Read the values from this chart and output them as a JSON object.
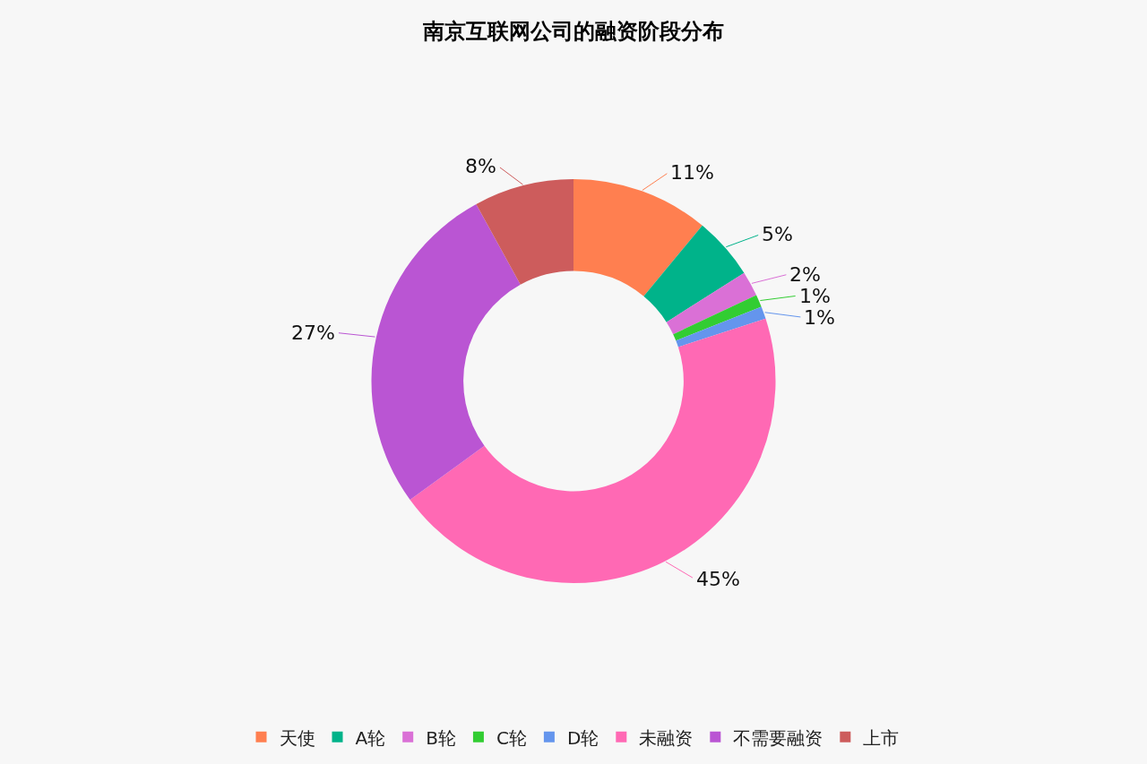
{
  "chart_data": {
    "type": "donut",
    "title": "南京互联网公司的融资阶段分布",
    "categories": [
      "天使",
      "A轮",
      "B轮",
      "C轮",
      "D轮",
      "未融资",
      "不需要融资",
      "上市"
    ],
    "values": [
      11,
      5,
      2,
      1,
      1,
      45,
      27,
      8
    ],
    "colors": [
      "#ff7f50",
      "#00b38a",
      "#da70d6",
      "#32cd32",
      "#6495ed",
      "#ff69b4",
      "#ba55d3",
      "#cd5c5c"
    ],
    "value_labels": [
      "11%",
      "5%",
      "2%",
      "1%",
      "1%",
      "45%",
      "27%",
      "8%"
    ],
    "legend": "bottom"
  }
}
